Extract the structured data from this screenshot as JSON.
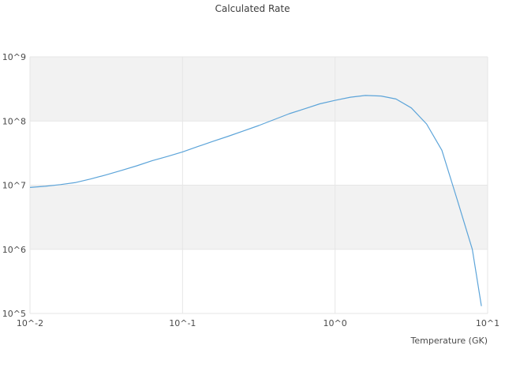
{
  "chart_data": {
    "type": "line",
    "title": "Calculated Rate",
    "xlabel": "Temperature (GK)",
    "ylabel": "",
    "x_scale": "log",
    "y_scale": "log",
    "xlim": [
      0.01,
      10
    ],
    "ylim": [
      100000.0,
      1000000000.0
    ],
    "grid": "horizontal-bands-alternating-decades",
    "legend": "none",
    "x_tick_values": [
      0.01,
      0.1,
      1,
      10
    ],
    "x_tick_labels": [
      "10^-2",
      "10^-1",
      "10^0",
      "10^1"
    ],
    "y_tick_values": [
      100000.0,
      1000000.0,
      10000000.0,
      100000000.0,
      1000000000.0
    ],
    "y_tick_labels": [
      "10^5",
      "10^6",
      "10^7",
      "10^8",
      "10^9"
    ],
    "series": [
      {
        "name": "calculated-rate",
        "x": [
          0.01,
          0.0126,
          0.0158,
          0.02,
          0.0251,
          0.0316,
          0.0398,
          0.0501,
          0.0631,
          0.0794,
          0.1,
          0.126,
          0.158,
          0.2,
          0.251,
          0.316,
          0.398,
          0.501,
          0.631,
          0.794,
          1.0,
          1.26,
          1.58,
          2.0,
          2.51,
          3.16,
          3.98,
          5.01,
          6.31,
          7.94,
          9.1
        ],
        "y": [
          9200000.0,
          9600000.0,
          10200000.0,
          11000000.0,
          12500000.0,
          14500000.0,
          17000000.0,
          20000000.0,
          24000000.0,
          28000000.0,
          33000000.0,
          40000000.0,
          48000000.0,
          58000000.0,
          70000000.0,
          85000000.0,
          105000000.0,
          130000000.0,
          155000000.0,
          185000000.0,
          210000000.0,
          235000000.0,
          250000000.0,
          245000000.0,
          220000000.0,
          160000000.0,
          90000000.0,
          35000000.0,
          6000000.0,
          1000000.0,
          130000.0
        ]
      }
    ],
    "colors": {
      "line": "#5ca4d9",
      "band": "#f2f2f2",
      "grid": "#e6e6e6",
      "text": "#4a4a4a"
    }
  }
}
